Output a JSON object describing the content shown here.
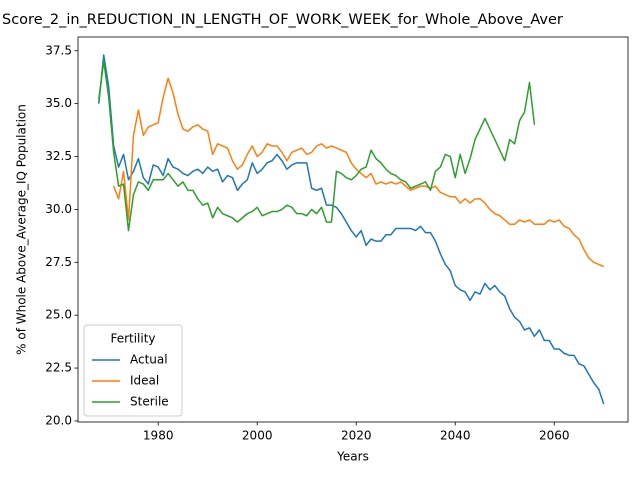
{
  "chart_data": {
    "type": "line",
    "title": "Score_2_in_REDUCTION_IN_LENGTH_OF_WORK_WEEK_for_Whole_Above_Aver",
    "x_label": "Years",
    "y_label": "% of Whole Above_Average_IQ Population",
    "x": [
      1968,
      1969,
      1970,
      1971,
      1972,
      1973,
      1974,
      1975,
      1976,
      1977,
      1978,
      1979,
      1980,
      1981,
      1982,
      1983,
      1984,
      1985,
      1986,
      1987,
      1988,
      1989,
      1990,
      1991,
      1992,
      1993,
      1994,
      1995,
      1996,
      1997,
      1998,
      1999,
      2000,
      2001,
      2002,
      2003,
      2004,
      2005,
      2006,
      2007,
      2008,
      2009,
      2010,
      2011,
      2012,
      2013,
      2014,
      2015,
      2016,
      2017,
      2018,
      2019,
      2020,
      2021,
      2022,
      2023,
      2024,
      2025,
      2026,
      2027,
      2028,
      2029,
      2030,
      2031,
      2032,
      2033,
      2034,
      2035,
      2036,
      2037,
      2038,
      2039,
      2040,
      2041,
      2042,
      2043,
      2044,
      2045,
      2046,
      2047,
      2048,
      2049,
      2050,
      2051,
      2052,
      2053,
      2054,
      2055,
      2056,
      2057,
      2058,
      2059,
      2060,
      2061,
      2062,
      2063,
      2064,
      2065,
      2066,
      2067,
      2068,
      2069,
      2070
    ],
    "series": [
      {
        "name": "Actual",
        "color": "#1f77b4",
        "values": [
          35.0,
          37.3,
          35.8,
          33.0,
          32.0,
          32.6,
          31.4,
          31.8,
          32.4,
          31.5,
          31.2,
          32.1,
          32.0,
          31.6,
          32.4,
          32.0,
          31.9,
          31.7,
          31.6,
          31.8,
          31.9,
          31.7,
          32.0,
          31.8,
          31.9,
          31.3,
          31.6,
          31.5,
          30.9,
          31.2,
          31.4,
          32.2,
          31.7,
          31.9,
          32.2,
          32.3,
          32.6,
          32.3,
          31.9,
          32.1,
          32.2,
          32.2,
          32.2,
          31.0,
          30.9,
          31.0,
          30.2,
          30.2,
          30.1,
          29.8,
          29.4,
          29.0,
          28.7,
          29.0,
          28.3,
          28.6,
          28.5,
          28.5,
          28.8,
          28.8,
          29.1,
          29.1,
          29.1,
          29.1,
          29.0,
          29.2,
          28.9,
          28.9,
          28.5,
          27.9,
          27.4,
          27.1,
          26.4,
          26.2,
          26.1,
          25.7,
          26.1,
          26.0,
          26.5,
          26.2,
          26.4,
          26.1,
          25.9,
          25.3,
          24.9,
          24.7,
          24.3,
          24.4,
          24.0,
          24.3,
          23.8,
          23.8,
          23.4,
          23.4,
          23.2,
          23.1,
          23.1,
          22.7,
          22.6,
          22.2,
          21.8,
          21.5,
          20.8
        ]
      },
      {
        "name": "Ideal",
        "color": "#ff7f0e",
        "values": [
          null,
          null,
          null,
          31.1,
          30.5,
          31.8,
          29.5,
          33.5,
          34.7,
          33.5,
          33.9,
          34.0,
          34.1,
          35.3,
          36.2,
          35.5,
          34.5,
          33.8,
          33.7,
          33.9,
          34.0,
          33.8,
          33.7,
          32.6,
          33.1,
          33.0,
          32.9,
          32.3,
          31.9,
          32.1,
          32.6,
          33.0,
          32.5,
          32.7,
          33.1,
          33.0,
          33.0,
          32.7,
          32.3,
          32.7,
          32.8,
          32.9,
          32.6,
          32.7,
          33.0,
          33.1,
          32.9,
          33.0,
          32.9,
          32.8,
          32.7,
          32.2,
          31.9,
          31.7,
          31.5,
          31.7,
          31.2,
          31.3,
          31.2,
          31.3,
          31.2,
          31.3,
          31.1,
          30.9,
          31.0,
          31.1,
          31.1,
          31.0,
          31.1,
          30.8,
          30.7,
          30.6,
          30.6,
          30.3,
          30.5,
          30.3,
          30.5,
          30.5,
          30.3,
          30.0,
          29.8,
          29.7,
          29.5,
          29.3,
          29.3,
          29.5,
          29.4,
          29.5,
          29.3,
          29.3,
          29.3,
          29.5,
          29.4,
          29.5,
          29.2,
          29.1,
          28.8,
          28.6,
          28.1,
          27.7,
          27.5,
          27.4,
          27.3
        ]
      },
      {
        "name": "Sterile",
        "color": "#2ca02c",
        "values": [
          35.2,
          37.0,
          35.3,
          32.7,
          31.1,
          31.2,
          29.0,
          30.7,
          31.3,
          31.2,
          30.9,
          31.4,
          31.4,
          31.4,
          31.7,
          31.4,
          31.1,
          31.3,
          30.9,
          30.9,
          30.5,
          30.2,
          30.3,
          29.6,
          30.1,
          29.8,
          29.7,
          29.6,
          29.4,
          29.6,
          29.8,
          29.9,
          30.1,
          29.7,
          29.8,
          29.9,
          29.9,
          30.0,
          30.2,
          30.1,
          29.8,
          29.8,
          29.7,
          30.0,
          29.8,
          30.1,
          29.4,
          29.4,
          31.8,
          31.7,
          31.5,
          31.4,
          31.6,
          31.9,
          32.0,
          32.8,
          32.4,
          32.2,
          31.9,
          31.7,
          31.6,
          31.4,
          31.3,
          31.0,
          31.1,
          31.2,
          31.3,
          30.9,
          31.8,
          32.0,
          32.6,
          32.5,
          31.5,
          32.6,
          31.7,
          32.4,
          33.3,
          33.8,
          34.3,
          33.8,
          33.3,
          32.8,
          32.3,
          33.3,
          33.1,
          34.2,
          34.6,
          36.0,
          34.0,
          null,
          null,
          null,
          null,
          null,
          null,
          null,
          null,
          null,
          null,
          null,
          null,
          null,
          null
        ]
      }
    ],
    "xlim": [
      1963.8,
      2074.9
    ],
    "xticks": [
      1980,
      2000,
      2020,
      2040,
      2060
    ],
    "ylim": [
      19.95,
      38.15
    ],
    "yticks": [
      {
        "value": 20,
        "label": "20.0"
      },
      22.5,
      {
        "value": 25,
        "label": "25.0"
      },
      27.5,
      {
        "value": 30,
        "label": "30.0"
      },
      32.5,
      {
        "value": 35,
        "label": "35.0"
      },
      37.5
    ],
    "legend_title": "Fertility",
    "legend_position": "lower left",
    "grid": false
  }
}
